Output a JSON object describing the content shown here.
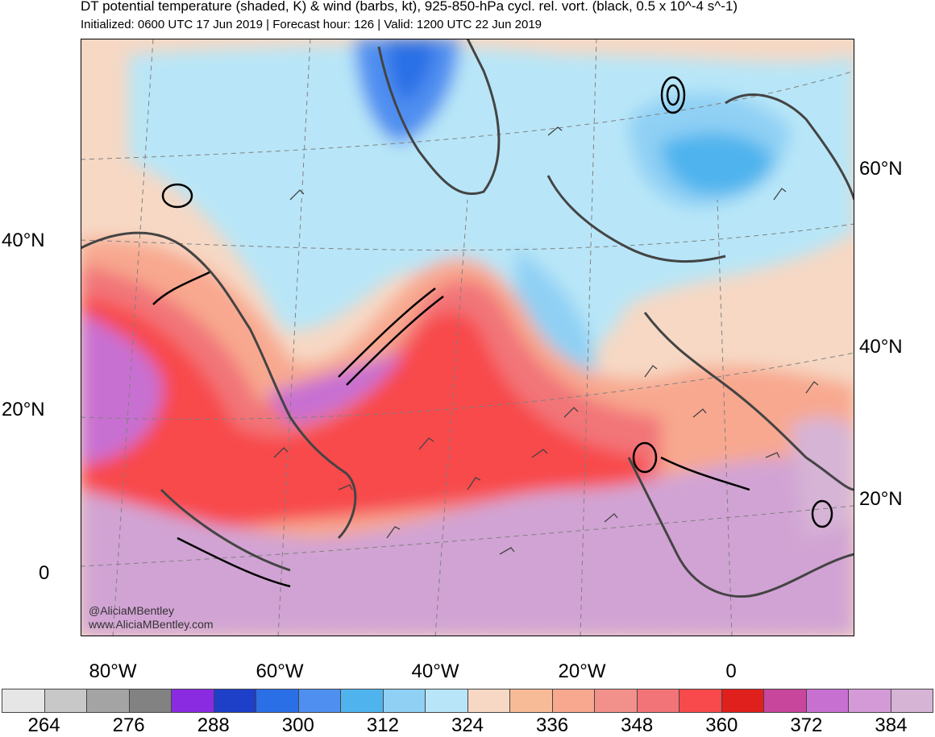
{
  "header": {
    "title": "DT potential temperature (shaded, K) & wind (barbs, kt), 925-850-hPa cycl. rel. vort. (black, 0.5 x 10^-4 s^-1)",
    "subtitle": "Initialized: 0600 UTC 17 Jun 2019 | Forecast hour: 126 | Valid: 1200 UTC 22 Jun 2019"
  },
  "map": {
    "credit_handle": "@AliciaMBentley",
    "credit_url": "www.AliciaMBentley.com",
    "lat_labels_left": [
      "40°N",
      "20°N",
      "0"
    ],
    "lat_labels_right": [
      "60°N",
      "40°N",
      "20°N"
    ],
    "lon_labels": [
      "80°W",
      "60°W",
      "40°W",
      "20°W",
      "0"
    ]
  },
  "colorbar": {
    "colors": [
      "#e6e6e6",
      "#c8c8c8",
      "#a4a4a4",
      "#828282",
      "#8a2be2",
      "#1e3fc8",
      "#2a6fe6",
      "#4f8ff0",
      "#4fb4ee",
      "#8fd0f4",
      "#b8e6f8",
      "#f6d8c4",
      "#f8bb98",
      "#f8a88f",
      "#f2908c",
      "#f27478",
      "#f84a4c",
      "#e0201c",
      "#c8469c",
      "#c870d2",
      "#d49ad8",
      "#d6b4d6"
    ],
    "labels": [
      "264",
      "276",
      "288",
      "300",
      "312",
      "324",
      "336",
      "348",
      "360",
      "372",
      "384"
    ]
  }
}
